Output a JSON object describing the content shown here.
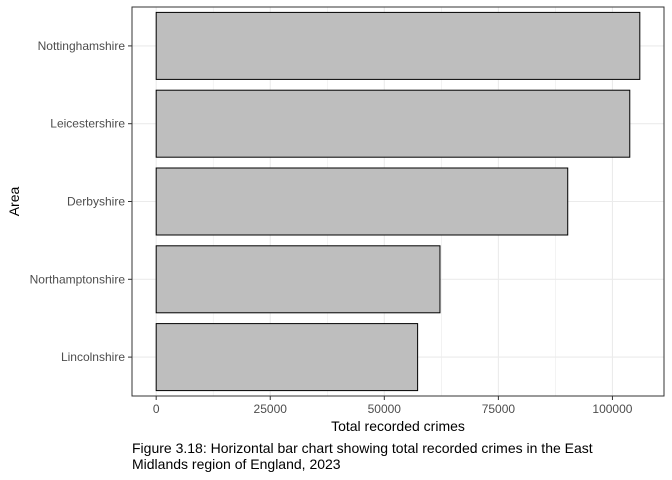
{
  "chart_data": {
    "type": "bar",
    "orientation": "horizontal",
    "categories": [
      "Nottinghamshire",
      "Leicestershire",
      "Derbyshire",
      "Northamptonshire",
      "Lincolnshire"
    ],
    "values": [
      106000,
      103800,
      90200,
      62200,
      57300
    ],
    "xlabel": "Total recorded crimes",
    "ylabel": "Area",
    "xlim": [
      -5300,
      111300
    ],
    "xticks": [
      0,
      25000,
      50000,
      75000,
      100000
    ],
    "xtick_labels": [
      "0",
      "25000",
      "50000",
      "75000",
      "100000"
    ],
    "grid": true,
    "bar_fill": "#bebebe",
    "bar_stroke": "#000000",
    "panel_border": "#333333",
    "grid_color": "#ebebeb",
    "text_color": "#4d4d4d"
  },
  "caption": "Figure 3.18: Horizontal bar chart showing total recorded crimes in the East Midlands region of England, 2023"
}
